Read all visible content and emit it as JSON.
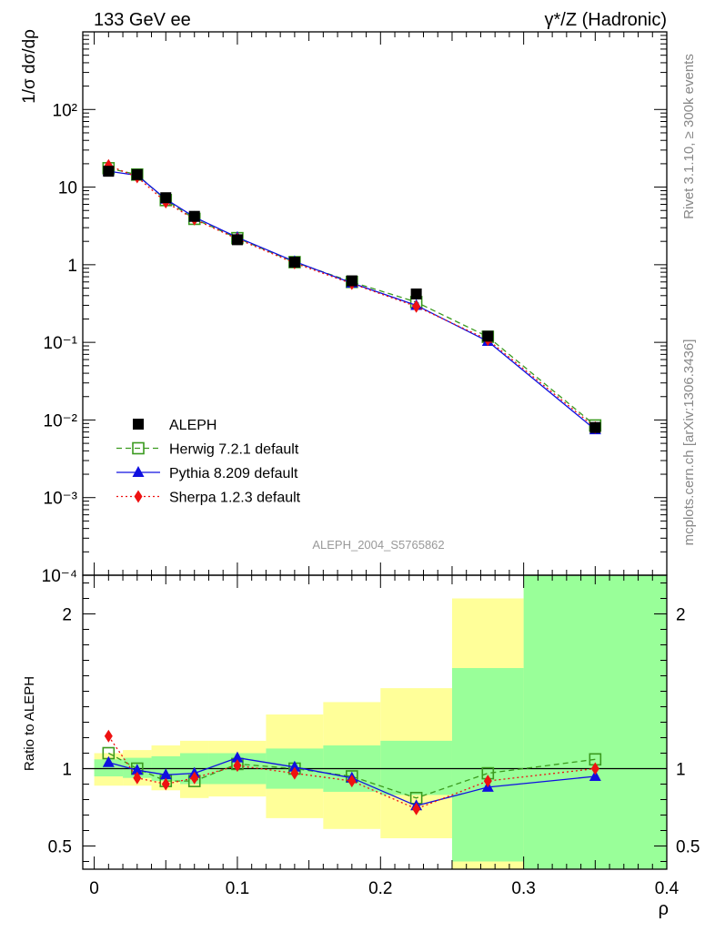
{
  "header": {
    "left_label": "133 GeV ee",
    "right_label": "γ*/Z (Hadronic)"
  },
  "side_labels": {
    "version": "Rivet 3.1.10, ≥ 300k events",
    "source": "mcplots.cern.ch [arXiv:1306.3436]"
  },
  "analysis_id": "ALEPH_2004_S5765862",
  "colors": {
    "data": "#000000",
    "herwig": "#3a9a1e",
    "pythia": "#1010e0",
    "sherpa": "#ee1111",
    "band_inner": "#99ff99",
    "band_outer": "#ffff99"
  },
  "chart_data": [
    {
      "type": "scatter",
      "panel": "main",
      "ylabel": "1/σ  dσ/dρ",
      "yscale": "log",
      "ylim": [
        0.0001,
        1000
      ],
      "xlim": [
        -0.008,
        0.4
      ],
      "y_tick_labels": [
        "10⁻⁴",
        "10⁻³",
        "10⁻²",
        "10⁻¹",
        "1",
        "10",
        "10²"
      ],
      "legend_position": "bottom-left",
      "x": [
        0.01,
        0.03,
        0.05,
        0.07,
        0.1,
        0.14,
        0.18,
        0.225,
        0.275,
        0.35
      ],
      "series": [
        {
          "name": "ALEPH",
          "style": "square-filled",
          "values": [
            16.0,
            14.5,
            7.3,
            4.2,
            2.1,
            1.08,
            0.62,
            0.42,
            0.12,
            0.008
          ]
        },
        {
          "name": "Herwig 7.2.1 default",
          "style": "square-open-dashed",
          "values": [
            17.5,
            14.5,
            6.8,
            3.9,
            2.2,
            1.08,
            0.6,
            0.33,
            0.118,
            0.0085
          ]
        },
        {
          "name": "Pythia 8.209 default",
          "style": "triangle-solid",
          "values": [
            16.0,
            14.2,
            7.0,
            4.1,
            2.25,
            1.1,
            0.58,
            0.3,
            0.103,
            0.0075
          ]
        },
        {
          "name": "Sherpa 1.2.3 default",
          "style": "diamond-dotted",
          "values": [
            19.0,
            13.5,
            6.4,
            3.85,
            2.15,
            1.05,
            0.57,
            0.29,
            0.108,
            0.008
          ]
        }
      ]
    },
    {
      "type": "line",
      "panel": "ratio",
      "ylabel": "Ratio to ALEPH",
      "xlabel": "ρ",
      "ylim": [
        0.35,
        2.25
      ],
      "xlim": [
        -0.008,
        0.4
      ],
      "y_ticks": [
        0.5,
        1,
        2
      ],
      "y_tick_labels": [
        "0.5",
        "1",
        "2"
      ],
      "x_ticks": [
        0,
        0.1,
        0.2,
        0.3,
        0.4
      ],
      "x_tick_labels": [
        "0",
        "0.1",
        "0.2",
        "0.3",
        "0.4"
      ],
      "reference_line": 1,
      "bands": [
        {
          "x0": 0.0,
          "x1": 0.02,
          "inner": [
            0.95,
            1.06
          ],
          "outer": [
            0.89,
            1.1
          ]
        },
        {
          "x0": 0.02,
          "x1": 0.04,
          "inner": [
            0.94,
            1.07
          ],
          "outer": [
            0.89,
            1.12
          ]
        },
        {
          "x0": 0.04,
          "x1": 0.06,
          "inner": [
            0.92,
            1.08
          ],
          "outer": [
            0.86,
            1.15
          ]
        },
        {
          "x0": 0.06,
          "x1": 0.08,
          "inner": [
            0.9,
            1.1
          ],
          "outer": [
            0.81,
            1.18
          ]
        },
        {
          "x0": 0.08,
          "x1": 0.12,
          "inner": [
            0.9,
            1.1
          ],
          "outer": [
            0.82,
            1.18
          ]
        },
        {
          "x0": 0.12,
          "x1": 0.16,
          "inner": [
            0.87,
            1.13
          ],
          "outer": [
            0.68,
            1.35
          ]
        },
        {
          "x0": 0.16,
          "x1": 0.2,
          "inner": [
            0.85,
            1.15
          ],
          "outer": [
            0.61,
            1.43
          ]
        },
        {
          "x0": 0.2,
          "x1": 0.25,
          "inner": [
            0.83,
            1.18
          ],
          "outer": [
            0.55,
            1.52
          ]
        },
        {
          "x0": 0.25,
          "x1": 0.3,
          "inner": [
            0.4,
            1.65
          ],
          "outer": [
            0.35,
            2.1
          ]
        },
        {
          "x0": 0.3,
          "x1": 0.4,
          "inner": [
            0.35,
            2.25
          ],
          "outer": [
            0.35,
            2.25
          ]
        }
      ],
      "x": [
        0.01,
        0.03,
        0.05,
        0.07,
        0.1,
        0.14,
        0.18,
        0.225,
        0.275,
        0.35
      ],
      "series": [
        {
          "name": "Herwig 7.2.1 default",
          "values": [
            1.1,
            1.0,
            0.92,
            0.92,
            1.03,
            1.0,
            0.95,
            0.81,
            0.97,
            1.06
          ]
        },
        {
          "name": "Pythia 8.209 default",
          "values": [
            1.04,
            0.99,
            0.96,
            0.97,
            1.07,
            1.01,
            0.94,
            0.76,
            0.88,
            0.95
          ]
        },
        {
          "name": "Sherpa 1.2.3 default",
          "values": [
            1.21,
            0.94,
            0.9,
            0.94,
            1.02,
            0.97,
            0.92,
            0.74,
            0.92,
            1.0
          ]
        }
      ]
    }
  ]
}
